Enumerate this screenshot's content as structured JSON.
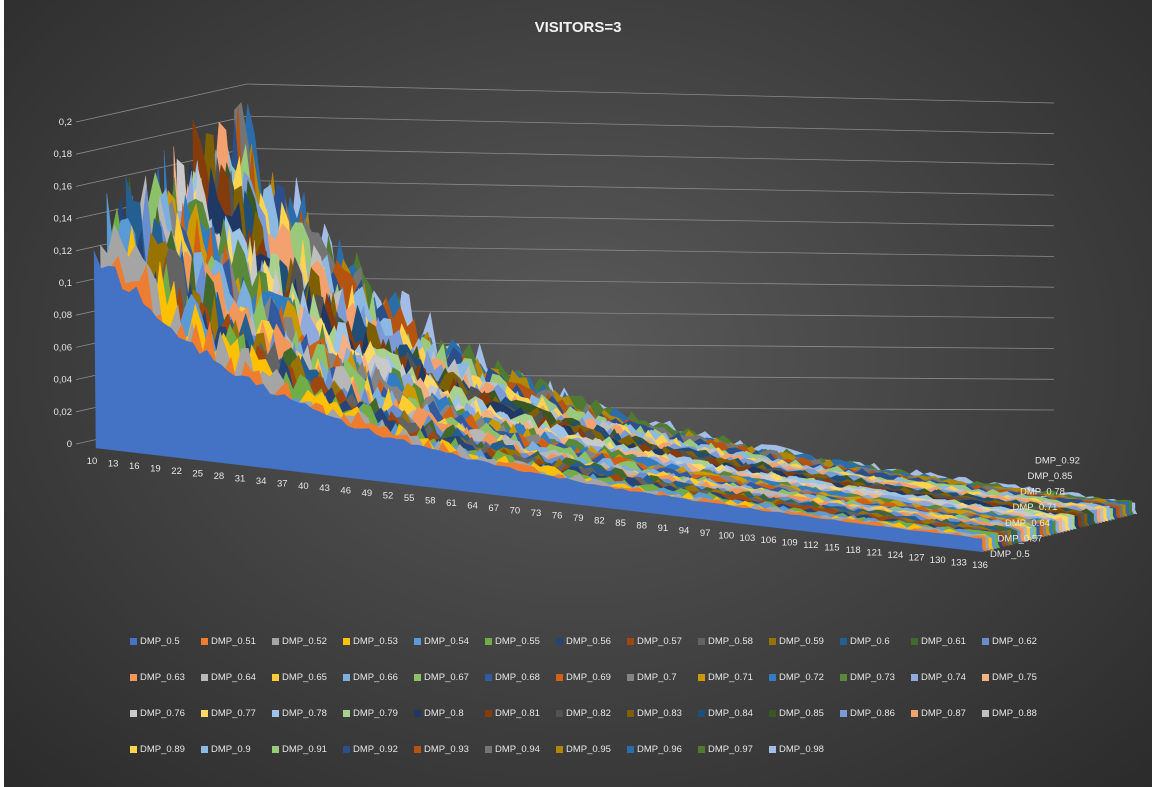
{
  "chart_data": {
    "type": "area",
    "projection": "3d",
    "title": "VISITORS=3",
    "xlabel": "",
    "ylabel": "",
    "x_tick_labels": [
      "10",
      "13",
      "16",
      "19",
      "22",
      "25",
      "28",
      "31",
      "34",
      "37",
      "40",
      "43",
      "46",
      "49",
      "52",
      "55",
      "58",
      "61",
      "64",
      "67",
      "70",
      "73",
      "76",
      "79",
      "82",
      "85",
      "88",
      "91",
      "94",
      "97",
      "100",
      "103",
      "106",
      "109",
      "112",
      "115",
      "118",
      "121",
      "124",
      "127",
      "130",
      "133",
      "136"
    ],
    "x_range": [
      10,
      136
    ],
    "y_tick_labels": [
      "0",
      "0,02",
      "0,04",
      "0,06",
      "0,08",
      "0,1",
      "0,12",
      "0,14",
      "0,16",
      "0,18",
      "0,2"
    ],
    "ylim": [
      0,
      0.2
    ],
    "depth_tick_labels": [
      "DMP_0.5",
      "DMP_0.57",
      "DMP_0.64",
      "DMP_0.71",
      "DMP_0.78",
      "DMP_0.85",
      "DMP_0.92"
    ],
    "grid": true,
    "legend_position": "bottom",
    "series_trend": {
      "start_value_first": 0.12,
      "start_value_last": 0.19,
      "decay_to": 0.005
    },
    "series": [
      {
        "name": "DMP_0.5",
        "color": "#4472C4"
      },
      {
        "name": "DMP_0.51",
        "color": "#ED7D31"
      },
      {
        "name": "DMP_0.52",
        "color": "#A5A5A5"
      },
      {
        "name": "DMP_0.53",
        "color": "#FFC000"
      },
      {
        "name": "DMP_0.54",
        "color": "#5B9BD5"
      },
      {
        "name": "DMP_0.55",
        "color": "#70AD47"
      },
      {
        "name": "DMP_0.56",
        "color": "#264478"
      },
      {
        "name": "DMP_0.57",
        "color": "#9E480E"
      },
      {
        "name": "DMP_0.58",
        "color": "#636363"
      },
      {
        "name": "DMP_0.59",
        "color": "#997300"
      },
      {
        "name": "DMP_0.6",
        "color": "#255E91"
      },
      {
        "name": "DMP_0.61",
        "color": "#43682B"
      },
      {
        "name": "DMP_0.62",
        "color": "#698ED0"
      },
      {
        "name": "DMP_0.63",
        "color": "#F1975A"
      },
      {
        "name": "DMP_0.64",
        "color": "#B7B7B7"
      },
      {
        "name": "DMP_0.65",
        "color": "#FFCD33"
      },
      {
        "name": "DMP_0.66",
        "color": "#7CAFDD"
      },
      {
        "name": "DMP_0.67",
        "color": "#8CC168"
      },
      {
        "name": "DMP_0.68",
        "color": "#335AA1"
      },
      {
        "name": "DMP_0.69",
        "color": "#D26012"
      },
      {
        "name": "DMP_0.7",
        "color": "#848484"
      },
      {
        "name": "DMP_0.71",
        "color": "#CC9A00"
      },
      {
        "name": "DMP_0.72",
        "color": "#327DC2"
      },
      {
        "name": "DMP_0.73",
        "color": "#5A8A39"
      },
      {
        "name": "DMP_0.74",
        "color": "#8FAADC"
      },
      {
        "name": "DMP_0.75",
        "color": "#F4B183"
      },
      {
        "name": "DMP_0.76",
        "color": "#C9C9C9"
      },
      {
        "name": "DMP_0.77",
        "color": "#FFD966"
      },
      {
        "name": "DMP_0.78",
        "color": "#9DC3E6"
      },
      {
        "name": "DMP_0.79",
        "color": "#A9D18E"
      },
      {
        "name": "DMP_0.8",
        "color": "#1F3864"
      },
      {
        "name": "DMP_0.81",
        "color": "#843C0C"
      },
      {
        "name": "DMP_0.82",
        "color": "#525252"
      },
      {
        "name": "DMP_0.83",
        "color": "#7F6000"
      },
      {
        "name": "DMP_0.84",
        "color": "#1F4E79"
      },
      {
        "name": "DMP_0.85",
        "color": "#385723"
      },
      {
        "name": "DMP_0.86",
        "color": "#7A9BD6"
      },
      {
        "name": "DMP_0.87",
        "color": "#F3A26F"
      },
      {
        "name": "DMP_0.88",
        "color": "#BFBFBF"
      },
      {
        "name": "DMP_0.89",
        "color": "#FFD34D"
      },
      {
        "name": "DMP_0.9",
        "color": "#8CB9E1"
      },
      {
        "name": "DMP_0.91",
        "color": "#9BC97B"
      },
      {
        "name": "DMP_0.92",
        "color": "#2C4F8C"
      },
      {
        "name": "DMP_0.93",
        "color": "#B55410"
      },
      {
        "name": "DMP_0.94",
        "color": "#747474"
      },
      {
        "name": "DMP_0.95",
        "color": "#B38600"
      },
      {
        "name": "DMP_0.96",
        "color": "#2B6DA8"
      },
      {
        "name": "DMP_0.97",
        "color": "#4E7A32"
      },
      {
        "name": "DMP_0.98",
        "color": "#A4BDE6"
      }
    ]
  }
}
